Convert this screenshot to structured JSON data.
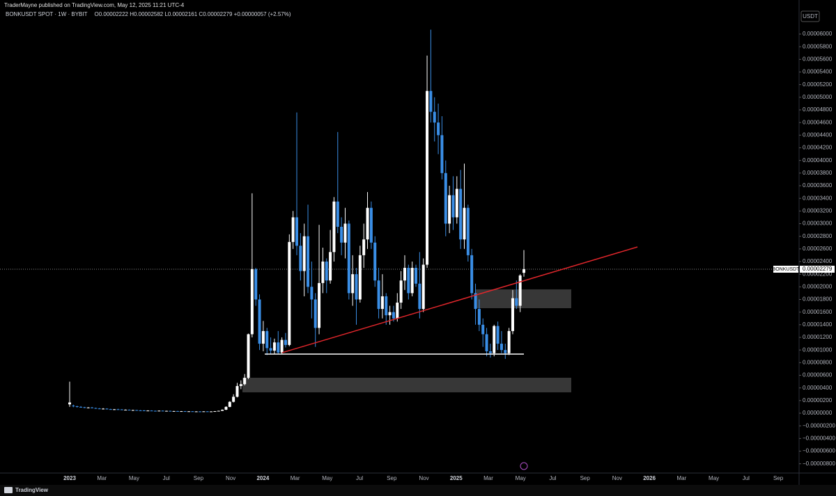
{
  "page": {
    "attribution": "TraderMayne published on TradingView.com, May 12, 2025 11:21 UTC-4",
    "logo": "TradingView"
  },
  "chart_data": {
    "type": "candlestick",
    "title": "BONKUSDT SPOT · 1W · BYBIT",
    "ohlc_text": "O0.00002222 H0.00002582 L0.00002161 C0.00002279 +0.00000057 (+2.57%)",
    "currency": "USDT",
    "up_color": "#ffffff",
    "down_color": "#3a8ee6",
    "open": [
      1.4e-06,
      1.2e-06,
      1.1e-06,
      1e-06,
      9.5e-07,
      8.5e-07,
      9e-07,
      8.2e-07,
      7.5e-07,
      7e-07,
      7.2e-07,
      6.4e-07,
      5.8e-07,
      6.2e-07,
      6e-07,
      5.2e-07,
      5.5e-07,
      4.8e-07,
      5e-07,
      4.5e-07,
      4.4e-07,
      4e-07,
      4.2e-07,
      3.8e-07,
      3.6e-07,
      4e-07,
      3.5e-07,
      3.7e-07,
      3.3e-07,
      3.4e-07,
      3.1e-07,
      3.2e-07,
      2.9e-07,
      3e-07,
      2.7e-07,
      2.8e-07,
      2.6e-07,
      2.9e-07,
      2.7e-07,
      2.8e-07,
      3.2e-07,
      3.8e-07,
      5.5e-07,
      1e-06,
      1.8e-06,
      2.6e-06,
      4.3e-06,
      4.6e-06,
      5.6e-06,
      1.25e-05,
      2.28e-05,
      1.8e-05,
      1.1e-05,
      1.3e-05,
      1.03e-05,
      9.9e-06,
      1.12e-05,
      9.6e-06,
      1.16e-05,
      1.08e-05,
      2.71e-05,
      3.1e-05,
      2.65e-05,
      2.25e-05,
      2.8e-05,
      2e-05,
      1.8e-05,
      1.35e-05,
      2.06e-05,
      2.4e-05,
      2.1e-05,
      2.55e-05,
      3.35e-05,
      2.95e-05,
      2.7e-05,
      3e-05,
      1.9e-05,
      2.2e-05,
      1.8e-05,
      2.5e-05,
      2.75e-05,
      3.25e-05,
      2.7e-05,
      2.1e-05,
      1.65e-05,
      1.85e-05,
      1.55e-05,
      1.6e-05,
      1.5e-05,
      1.75e-05,
      2.1e-05,
      2.3e-05,
      1.9e-05,
      2.3e-05,
      2.05e-05,
      1.65e-05,
      2.35e-05,
      5.1e-05,
      4.77e-05,
      4.6e-05,
      4.4e-05,
      3.8e-05,
      3e-05,
      3.45e-05,
      3.1e-05,
      3.55e-05,
      2.75e-05,
      3.25e-05,
      2.5e-05,
      1.9e-05,
      1.65e-05,
      1.4e-05,
      1.25e-05,
      9.8e-06,
      9.5e-06,
      1.38e-05,
      1.1e-05,
      1e-05,
      9.5e-06,
      1.3e-05,
      1.82e-05,
      1.7e-05,
      2.222e-05
    ],
    "high": [
      5e-06,
      1.35e-06,
      1.18e-06,
      1.12e-06,
      1e-06,
      9.5e-07,
      9.8e-07,
      8.8e-07,
      8.2e-07,
      8e-07,
      7.8e-07,
      7e-07,
      6.6e-07,
      7e-07,
      6.4e-07,
      6e-07,
      5.8e-07,
      5.5e-07,
      5.2e-07,
      5e-07,
      4.8e-07,
      4.6e-07,
      4.5e-07,
      4.2e-07,
      4.4e-07,
      4.3e-07,
      4e-07,
      4e-07,
      3.6e-07,
      3.7e-07,
      3.4e-07,
      3.5e-07,
      3.2e-07,
      3.3e-07,
      3e-07,
      3.1e-07,
      3e-07,
      3.2e-07,
      3e-07,
      3.4e-07,
      4e-07,
      6e-07,
      1.1e-06,
      1.9e-06,
      3e-06,
      4.8e-06,
      5.2e-06,
      6.2e-06,
      1.26e-05,
      3.48e-05,
      2.3e-05,
      1.88e-05,
      1.46e-05,
      1.35e-05,
      1.2e-05,
      1.18e-05,
      1.3e-05,
      1.2e-05,
      1.27e-05,
      2.83e-05,
      3.2e-05,
      4.76e-05,
      2.85e-05,
      3e-05,
      3.3e-05,
      2.4e-05,
      1.9e-05,
      2.98e-05,
      2.62e-05,
      2.45e-05,
      2.9e-05,
      3.42e-05,
      4.45e-05,
      3.1e-05,
      3.25e-05,
      3.05e-05,
      2.5e-05,
      2.3e-05,
      2.65e-05,
      3e-05,
      3.5e-05,
      3.35e-05,
      2.8e-05,
      2.3e-05,
      2.2e-05,
      1.9e-05,
      1.7e-05,
      1.7e-05,
      1.9e-05,
      2.25e-05,
      2.5e-05,
      2.35e-05,
      2.4e-05,
      2.35e-05,
      2.55e-05,
      2.45e-05,
      5.66e-05,
      6.07e-05,
      5e-05,
      4.9e-05,
      4.7e-05,
      4e-05,
      3.6e-05,
      3.75e-05,
      3.75e-05,
      3.85e-05,
      3.95e-05,
      3.3e-05,
      2.6e-05,
      2.05e-05,
      1.8e-05,
      1.5e-05,
      1.35e-05,
      1.1e-05,
      1.4e-05,
      1.45e-05,
      1.3e-05,
      1.1e-05,
      1.35e-05,
      1.95e-05,
      2.1e-05,
      2.2e-05,
      2.582e-05
    ],
    "low": [
      1e-06,
      9.5e-07,
      9e-07,
      8.8e-07,
      8e-07,
      7.8e-07,
      8e-07,
      7e-07,
      6.5e-07,
      6.2e-07,
      6e-07,
      5.5e-07,
      5.2e-07,
      5.5e-07,
      5e-07,
      4.8e-07,
      4.5e-07,
      4.4e-07,
      4.2e-07,
      4e-07,
      3.8e-07,
      3.6e-07,
      3.6e-07,
      3.3e-07,
      3.4e-07,
      3.4e-07,
      3.2e-07,
      3.2e-07,
      3e-07,
      3e-07,
      2.8e-07,
      2.8e-07,
      2.6e-07,
      2.6e-07,
      2.4e-07,
      2.5e-07,
      2.4e-07,
      2.5e-07,
      2.4e-07,
      2.6e-07,
      3e-07,
      3.6e-07,
      5e-07,
      9.5e-07,
      1.7e-06,
      2.5e-06,
      3.8e-06,
      4.4e-06,
      5.4e-06,
      1.2e-05,
      1.7e-05,
      1e-05,
      9.8e-06,
      9.2e-06,
      9.3e-06,
      9.4e-06,
      9.3e-06,
      9.4e-06,
      1.04e-05,
      1.06e-05,
      2.6e-05,
      2.5e-05,
      2.1e-05,
      1.85e-05,
      1.9e-05,
      1.5e-05,
      1.05e-05,
      1.25e-05,
      1.9e-05,
      1.9e-05,
      2.05e-05,
      2.4e-05,
      2.85e-05,
      2.5e-05,
      2.45e-05,
      1.8e-05,
      1.7e-05,
      1.4e-05,
      1.75e-05,
      2.3e-05,
      2.6e-05,
      2.6e-05,
      2e-05,
      1.5e-05,
      1.5e-05,
      1.4e-05,
      1.4e-05,
      1.45e-05,
      1.45e-05,
      1.65e-05,
      1.95e-05,
      1.8e-05,
      1.85e-05,
      2e-05,
      1.5e-05,
      1.6e-05,
      2.3e-05,
      4.6e-05,
      4.3e-05,
      4.1e-05,
      3.7e-05,
      2.8e-05,
      2.85e-05,
      2.9e-05,
      3e-05,
      2.6e-05,
      2.6e-05,
      2.4e-05,
      1.8e-05,
      1.4e-05,
      1.3e-05,
      1.05e-05,
      9e-06,
      8.8e-06,
      9e-06,
      1e-05,
      9.5e-06,
      8.6e-06,
      9.2e-06,
      1.25e-05,
      1.65e-05,
      1.6e-05,
      2.161e-05
    ],
    "close": [
      1.7e-06,
      1.1e-06,
      1e-06,
      9.5e-07,
      8.5e-07,
      9e-07,
      8.2e-07,
      7.5e-07,
      7e-07,
      7.2e-07,
      6.4e-07,
      5.8e-07,
      6.2e-07,
      6e-07,
      5.2e-07,
      5.5e-07,
      4.8e-07,
      5e-07,
      4.5e-07,
      4.4e-07,
      4e-07,
      4.2e-07,
      3.8e-07,
      3.6e-07,
      4e-07,
      3.5e-07,
      3.7e-07,
      3.3e-07,
      3.4e-07,
      3.1e-07,
      3.2e-07,
      2.9e-07,
      3e-07,
      2.7e-07,
      2.8e-07,
      2.6e-07,
      2.9e-07,
      2.7e-07,
      2.8e-07,
      3.2e-07,
      3.8e-07,
      5.5e-07,
      1e-06,
      1.8e-06,
      2.6e-06,
      4.3e-06,
      4.6e-06,
      5.6e-06,
      1.25e-05,
      2.28e-05,
      1.8e-05,
      1.1e-05,
      1.3e-05,
      1.03e-05,
      9.9e-06,
      1.12e-05,
      9.6e-06,
      1.16e-05,
      1.08e-05,
      2.71e-05,
      3.1e-05,
      2.65e-05,
      2.25e-05,
      2.8e-05,
      2e-05,
      1.8e-05,
      1.35e-05,
      2.06e-05,
      2.4e-05,
      2.1e-05,
      2.55e-05,
      3.35e-05,
      2.95e-05,
      2.7e-05,
      3e-05,
      1.9e-05,
      2.2e-05,
      1.8e-05,
      2.5e-05,
      2.75e-05,
      3.25e-05,
      2.7e-05,
      2.1e-05,
      1.65e-05,
      1.85e-05,
      1.55e-05,
      1.6e-05,
      1.5e-05,
      1.75e-05,
      2.1e-05,
      2.3e-05,
      1.9e-05,
      2.3e-05,
      2.05e-05,
      1.65e-05,
      2.35e-05,
      5.1e-05,
      4.77e-05,
      4.6e-05,
      4.4e-05,
      3.8e-05,
      3e-05,
      3.45e-05,
      3.1e-05,
      3.55e-05,
      2.75e-05,
      3.25e-05,
      2.5e-05,
      1.9e-05,
      1.65e-05,
      1.4e-05,
      1.25e-05,
      9.8e-06,
      9.5e-06,
      1.38e-05,
      1.1e-05,
      1e-05,
      9.5e-06,
      1.3e-05,
      1.82e-05,
      1.7e-05,
      2.18e-05,
      2.279e-05
    ],
    "xticks": [
      "2023",
      "Mar",
      "May",
      "Jul",
      "Sep",
      "Nov",
      "2024",
      "Mar",
      "May",
      "Jul",
      "Sep",
      "Nov",
      "2025",
      "Mar",
      "May",
      "Jul",
      "Sep",
      "Nov",
      "2026",
      "Mar",
      "May",
      "Jul",
      "Sep"
    ],
    "ylim": [
      -9.47e-06,
      6.209e-05
    ],
    "yticks": [
      {
        "value": 6e-05,
        "label": "0.00006000"
      },
      {
        "value": 5.8e-05,
        "label": "0.00005800"
      },
      {
        "value": 5.6e-05,
        "label": "0.00005600"
      },
      {
        "value": 5.4e-05,
        "label": "0.00005400"
      },
      {
        "value": 5.2e-05,
        "label": "0.00005200"
      },
      {
        "value": 5e-05,
        "label": "0.00005000"
      },
      {
        "value": 4.8e-05,
        "label": "0.00004800"
      },
      {
        "value": 4.6e-05,
        "label": "0.00004600"
      },
      {
        "value": 4.4e-05,
        "label": "0.00004400"
      },
      {
        "value": 4.2e-05,
        "label": "0.00004200"
      },
      {
        "value": 4e-05,
        "label": "0.00004000"
      },
      {
        "value": 3.8e-05,
        "label": "0.00003800"
      },
      {
        "value": 3.6e-05,
        "label": "0.00003600"
      },
      {
        "value": 3.4e-05,
        "label": "0.00003400"
      },
      {
        "value": 3.2e-05,
        "label": "0.00003200"
      },
      {
        "value": 3e-05,
        "label": "0.00003000"
      },
      {
        "value": 2.8e-05,
        "label": "0.00002800"
      },
      {
        "value": 2.6e-05,
        "label": "0.00002600"
      },
      {
        "value": 2.4e-05,
        "label": "0.00002400"
      },
      {
        "value": 2.2e-05,
        "label": "0.00002200"
      },
      {
        "value": 2e-05,
        "label": "0.00002000"
      },
      {
        "value": 1.8e-05,
        "label": "0.00001800"
      },
      {
        "value": 1.6e-05,
        "label": "0.00001600"
      },
      {
        "value": 1.4e-05,
        "label": "0.00001400"
      },
      {
        "value": 1.2e-05,
        "label": "0.00001200"
      },
      {
        "value": 1e-05,
        "label": "0.00001000"
      },
      {
        "value": 8e-06,
        "label": "0.00000800"
      },
      {
        "value": 6e-06,
        "label": "0.00000600"
      },
      {
        "value": 4e-06,
        "label": "0.00000400"
      },
      {
        "value": 2e-06,
        "label": "0.00000200"
      },
      {
        "value": 0,
        "label": "0.00000000"
      },
      {
        "value": -2e-06,
        "label": "−0.00000200"
      },
      {
        "value": -4e-06,
        "label": "−0.00000400"
      },
      {
        "value": -6e-06,
        "label": "−0.00000600"
      },
      {
        "value": -8e-06,
        "label": "−0.00000800"
      }
    ],
    "price_line": {
      "name": "BONKUSDT",
      "value": 2.279e-05,
      "label": "0.00002279"
    },
    "trendline": {
      "color": "#e0262b",
      "y": [
        9.58e-06,
        2.631e-05
      ]
    },
    "support_line": {
      "color": "#ffffff",
      "y": 9.36e-06
    },
    "zones": [
      {
        "color": "#4a4a4a",
        "y": [
          1.96e-05,
          1.662e-05
        ]
      },
      {
        "color": "#4a4a4a",
        "y": [
          5.61e-06,
          3.3e-06
        ]
      }
    ]
  }
}
